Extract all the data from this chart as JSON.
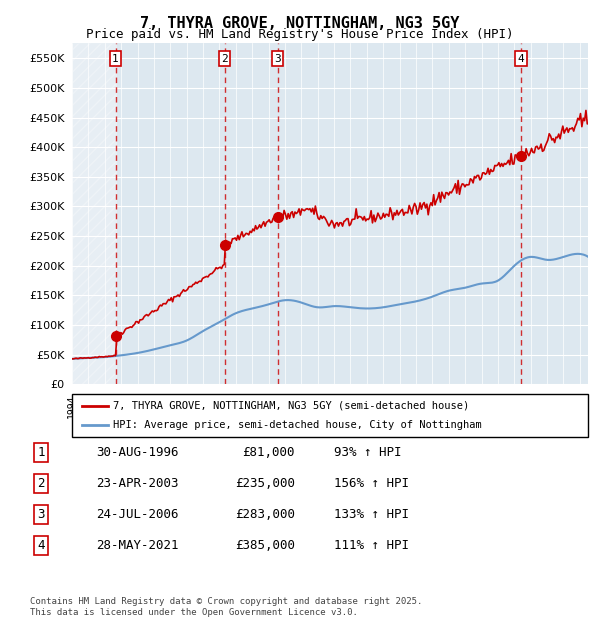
{
  "title": "7, THYRA GROVE, NOTTINGHAM, NG3 5GY",
  "subtitle": "Price paid vs. HM Land Registry's House Price Index (HPI)",
  "property_label": "7, THYRA GROVE, NOTTINGHAM, NG3 5GY (semi-detached house)",
  "hpi_label": "HPI: Average price, semi-detached house, City of Nottingham",
  "footer": "Contains HM Land Registry data © Crown copyright and database right 2025.\nThis data is licensed under the Open Government Licence v3.0.",
  "sales": [
    {
      "num": 1,
      "date": "30-AUG-1996",
      "year": 1996.66,
      "price": 81000,
      "pct": "93% ↑ HPI"
    },
    {
      "num": 2,
      "date": "23-APR-2003",
      "year": 2003.31,
      "price": 235000,
      "pct": "156% ↑ HPI"
    },
    {
      "num": 3,
      "date": "24-JUL-2006",
      "year": 2006.56,
      "price": 283000,
      "pct": "133% ↑ HPI"
    },
    {
      "num": 4,
      "date": "28-MAY-2021",
      "year": 2021.41,
      "price": 385000,
      "pct": "111% ↑ HPI"
    }
  ],
  "hpi_color": "#6699cc",
  "sale_color": "#cc0000",
  "background_color": "#dde8f0",
  "plot_bg_color": "#dde8f0",
  "hatch_color": "#bbccdd",
  "ylim": [
    0,
    575000
  ],
  "xlim_start": 1994.0,
  "xlim_end": 2025.5,
  "yticks": [
    0,
    50000,
    100000,
    150000,
    200000,
    250000,
    300000,
    350000,
    400000,
    450000,
    500000,
    550000
  ],
  "ytick_labels": [
    "£0",
    "£50K",
    "£100K",
    "£150K",
    "£200K",
    "£250K",
    "£300K",
    "£350K",
    "£400K",
    "£450K",
    "£500K",
    "£550K"
  ]
}
